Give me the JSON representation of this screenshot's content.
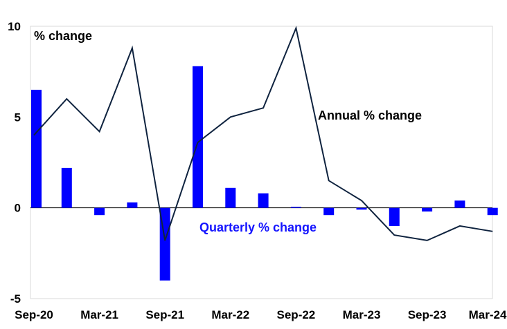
{
  "chart_data": {
    "type": "bar+line",
    "title": "",
    "xlabel": "",
    "ylabel": "",
    "ylim": [
      -5,
      10
    ],
    "yticks": [
      10,
      5,
      0,
      -5
    ],
    "grid": false,
    "x_tick_labels": [
      "Sep-20",
      "Mar-21",
      "Sep-21",
      "Mar-22",
      "Sep-22",
      "Mar-23",
      "Sep-23",
      "Mar-24"
    ],
    "periods": [
      "Sep-20",
      "Dec-20",
      "Mar-21",
      "Jun-21",
      "Sep-21",
      "Dec-21",
      "Mar-22",
      "Jun-22",
      "Sep-22",
      "Dec-22",
      "Mar-23",
      "Jun-23",
      "Sep-23",
      "Dec-23",
      "Mar-24"
    ],
    "annotations": {
      "unit": "% change",
      "annual": "Annual % change",
      "quarterly": "Quarterly % change"
    },
    "series": [
      {
        "name": "Quarterly % change",
        "kind": "bar",
        "color": "#0000ff",
        "values": [
          6.5,
          2.2,
          -0.4,
          0.3,
          -4.0,
          7.8,
          1.1,
          0.8,
          0.05,
          -0.4,
          -0.1,
          -1.0,
          -0.2,
          0.4,
          -0.4
        ]
      },
      {
        "name": "Annual % change",
        "kind": "line",
        "color": "#0f233f",
        "values": [
          4.0,
          6.0,
          4.2,
          8.8,
          -1.8,
          3.6,
          5.0,
          5.5,
          9.9,
          1.5,
          0.4,
          -1.5,
          -1.8,
          -1.0,
          -1.3
        ]
      }
    ]
  }
}
